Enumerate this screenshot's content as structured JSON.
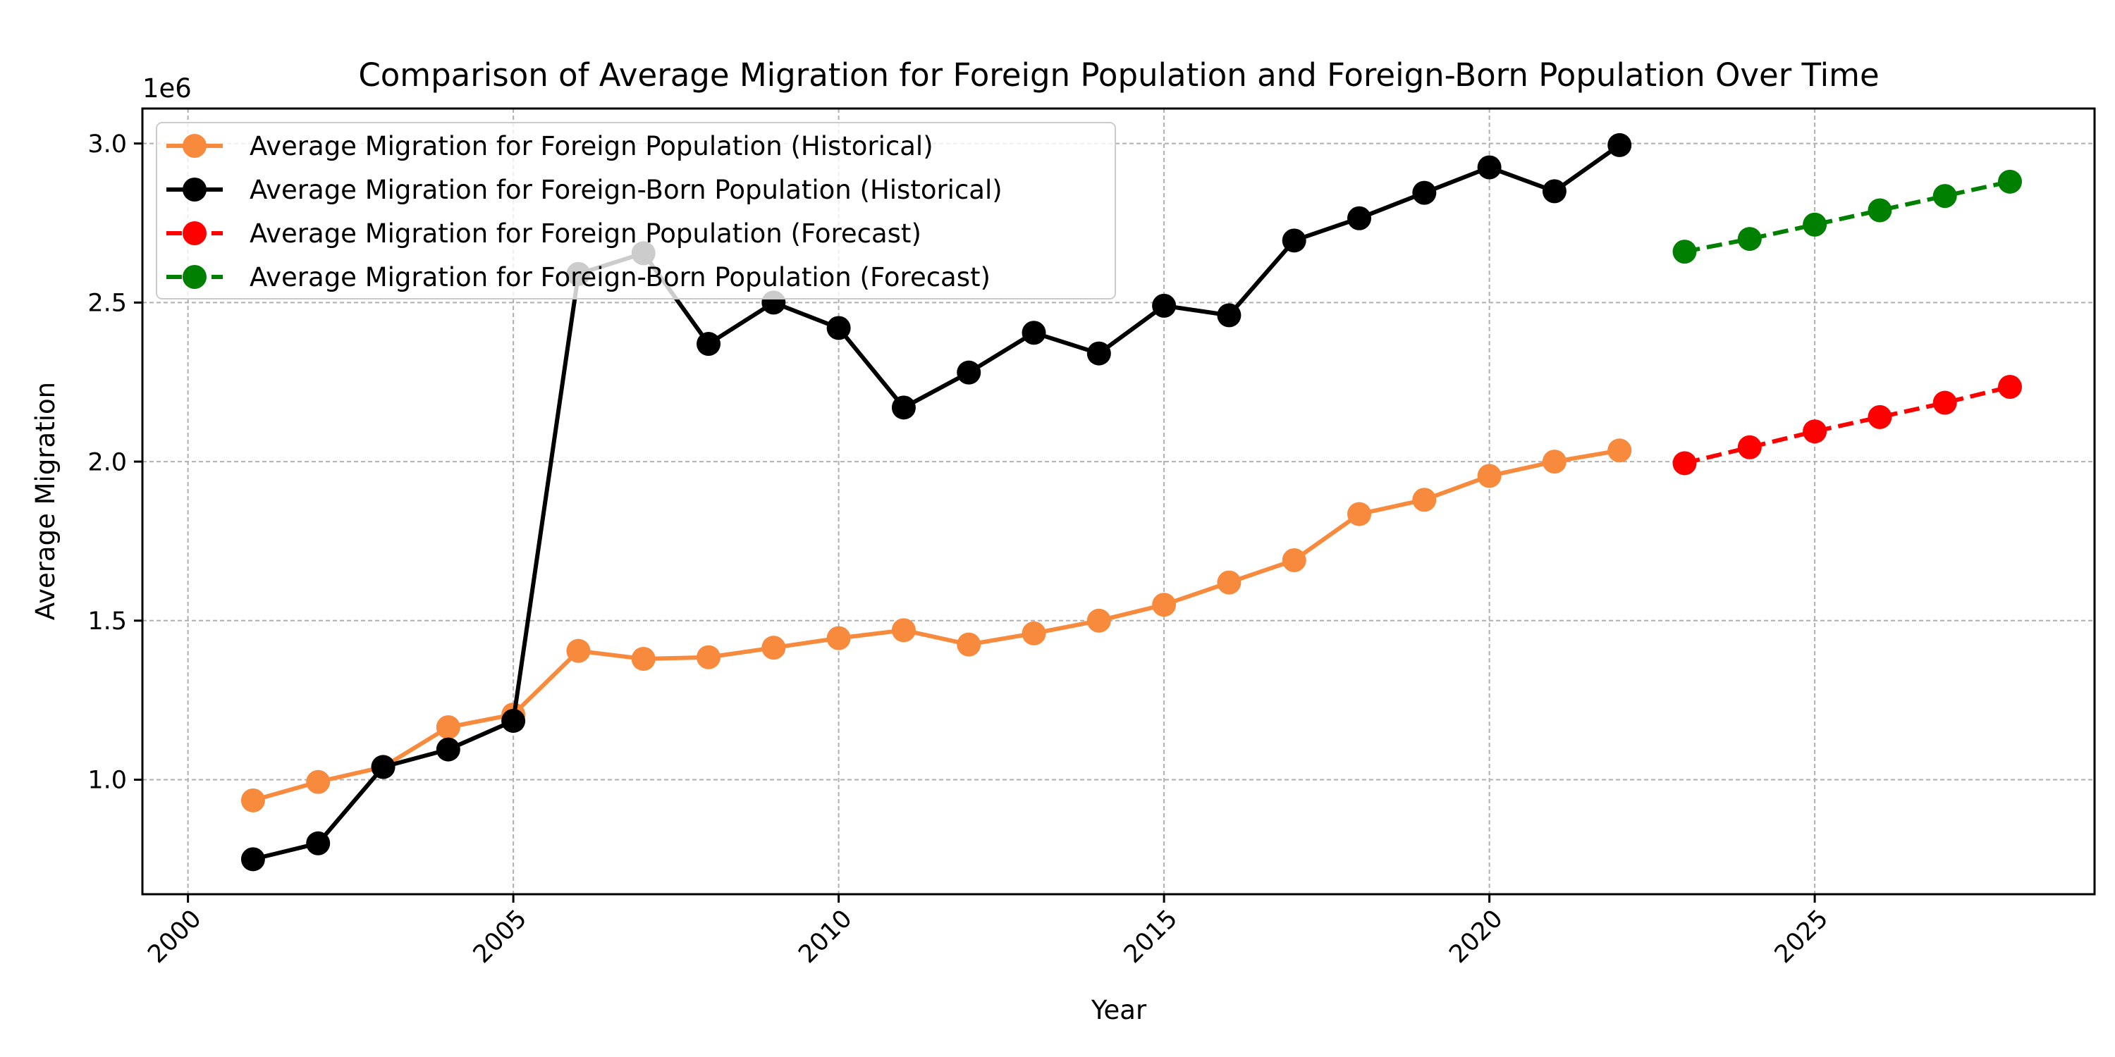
{
  "chart_data": {
    "type": "line",
    "title": "Comparison of Average Migration for Foreign Population and Foreign-Born Population Over Time",
    "xlabel": "Year",
    "ylabel": "Average Migration",
    "y_offset_label": "1e6",
    "xlim": [
      1999.3,
      2029.3
    ],
    "ylim": [
      0.64,
      3.11
    ],
    "x_ticks": [
      2000,
      2005,
      2010,
      2015,
      2020,
      2025
    ],
    "y_ticks": [
      1.0,
      1.5,
      2.0,
      2.5,
      3.0
    ],
    "y_tick_labels": [
      "1.0",
      "1.5",
      "2.0",
      "2.5",
      "3.0"
    ],
    "y_scale": 1000000,
    "grid": true,
    "legend_position": "upper-left",
    "series": [
      {
        "name": "Average Migration for Foreign Population (Historical)",
        "color": "#f78a3c",
        "style": "solid",
        "x": [
          2001,
          2002,
          2003,
          2004,
          2005,
          2006,
          2007,
          2008,
          2009,
          2010,
          2011,
          2012,
          2013,
          2014,
          2015,
          2016,
          2017,
          2018,
          2019,
          2020,
          2021,
          2022
        ],
        "values": [
          0.935,
          0.993,
          1.04,
          1.165,
          1.205,
          1.405,
          1.38,
          1.385,
          1.415,
          1.445,
          1.47,
          1.425,
          1.46,
          1.5,
          1.55,
          1.62,
          1.69,
          1.835,
          1.88,
          1.955,
          2.0,
          2.035
        ]
      },
      {
        "name": "Average Migration for Foreign-Born Population (Historical)",
        "color": "#000000",
        "style": "solid",
        "x": [
          2001,
          2002,
          2003,
          2004,
          2005,
          2006,
          2007,
          2008,
          2009,
          2010,
          2011,
          2012,
          2013,
          2014,
          2015,
          2016,
          2017,
          2018,
          2019,
          2020,
          2021,
          2022
        ],
        "values": [
          0.75,
          0.8,
          1.04,
          1.095,
          1.185,
          2.59,
          2.655,
          2.37,
          2.5,
          2.42,
          2.17,
          2.28,
          2.405,
          2.34,
          2.49,
          2.46,
          2.695,
          2.765,
          2.845,
          2.925,
          2.85,
          2.995
        ]
      },
      {
        "name": "Average Migration for Foreign Population (Forecast)",
        "color": "#ff0000",
        "style": "dashed",
        "x": [
          2023,
          2024,
          2025,
          2026,
          2027,
          2028
        ],
        "values": [
          1.995,
          2.045,
          2.095,
          2.14,
          2.185,
          2.235
        ]
      },
      {
        "name": "Average Migration for Foreign-Born Population (Forecast)",
        "color": "#008000",
        "style": "dashed",
        "x": [
          2023,
          2024,
          2025,
          2026,
          2027,
          2028
        ],
        "values": [
          2.66,
          2.7,
          2.745,
          2.79,
          2.835,
          2.88
        ]
      }
    ]
  }
}
